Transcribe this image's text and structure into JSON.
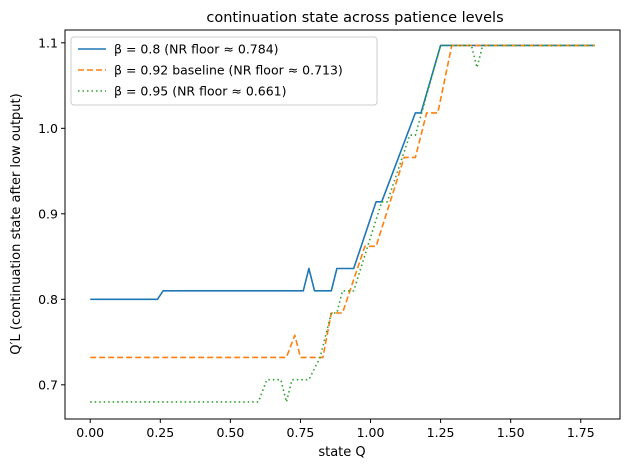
{
  "chart_data": {
    "type": "line",
    "title": "continuation state across patience levels",
    "xlabel": "state Q",
    "ylabel": "Q′L  (continuation state after low output)",
    "xlim": [
      -0.09,
      1.89
    ],
    "ylim": [
      0.66,
      1.115
    ],
    "xticks": [
      0.0,
      0.25,
      0.5,
      0.75,
      1.0,
      1.25,
      1.5,
      1.75
    ],
    "xtick_labels": [
      "0.00",
      "0.25",
      "0.50",
      "0.75",
      "1.00",
      "1.25",
      "1.50",
      "1.75"
    ],
    "yticks": [
      0.7,
      0.8,
      0.9,
      1.0,
      1.1
    ],
    "ytick_labels": [
      "0.7",
      "0.8",
      "0.9",
      "1.0",
      "1.1"
    ],
    "grid": false,
    "legend_position": "top-left",
    "series": [
      {
        "name": "β = 0.8  (NR floor ≈ 0.784)",
        "color": "#1f77b4",
        "dash": "solid",
        "points": [
          [
            0.0,
            0.8
          ],
          [
            0.24,
            0.8
          ],
          [
            0.26,
            0.81
          ],
          [
            0.76,
            0.81
          ],
          [
            0.78,
            0.836
          ],
          [
            0.8,
            0.81
          ],
          [
            0.86,
            0.81
          ],
          [
            0.88,
            0.836
          ],
          [
            0.94,
            0.836
          ],
          [
            1.02,
            0.914
          ],
          [
            1.04,
            0.914
          ],
          [
            1.16,
            1.018
          ],
          [
            1.18,
            1.018
          ],
          [
            1.25,
            1.097
          ],
          [
            1.8,
            1.097
          ]
        ]
      },
      {
        "name": "β = 0.92 baseline  (NR floor ≈ 0.713)",
        "color": "#ff7f0e",
        "dash": "dashed",
        "points": [
          [
            0.0,
            0.732
          ],
          [
            0.7,
            0.732
          ],
          [
            0.73,
            0.758
          ],
          [
            0.75,
            0.732
          ],
          [
            0.83,
            0.732
          ],
          [
            0.86,
            0.784
          ],
          [
            0.9,
            0.784
          ],
          [
            0.98,
            0.862
          ],
          [
            1.02,
            0.862
          ],
          [
            1.12,
            0.966
          ],
          [
            1.16,
            0.966
          ],
          [
            1.2,
            1.018
          ],
          [
            1.24,
            1.018
          ],
          [
            1.29,
            1.097
          ],
          [
            1.8,
            1.097
          ]
        ]
      },
      {
        "name": "β = 0.95  (NR floor ≈ 0.661)",
        "color": "#2ca02c",
        "dash": "dotted",
        "points": [
          [
            0.0,
            0.68
          ],
          [
            0.6,
            0.68
          ],
          [
            0.63,
            0.706
          ],
          [
            0.68,
            0.706
          ],
          [
            0.7,
            0.68
          ],
          [
            0.72,
            0.706
          ],
          [
            0.78,
            0.706
          ],
          [
            0.82,
            0.732
          ],
          [
            0.86,
            0.784
          ],
          [
            0.88,
            0.784
          ],
          [
            0.9,
            0.81
          ],
          [
            0.94,
            0.81
          ],
          [
            1.04,
            0.914
          ],
          [
            1.06,
            0.914
          ],
          [
            1.14,
            0.992
          ],
          [
            1.16,
            0.992
          ],
          [
            1.25,
            1.097
          ],
          [
            1.36,
            1.097
          ],
          [
            1.38,
            1.071
          ],
          [
            1.4,
            1.097
          ],
          [
            1.8,
            1.097
          ]
        ]
      }
    ]
  }
}
